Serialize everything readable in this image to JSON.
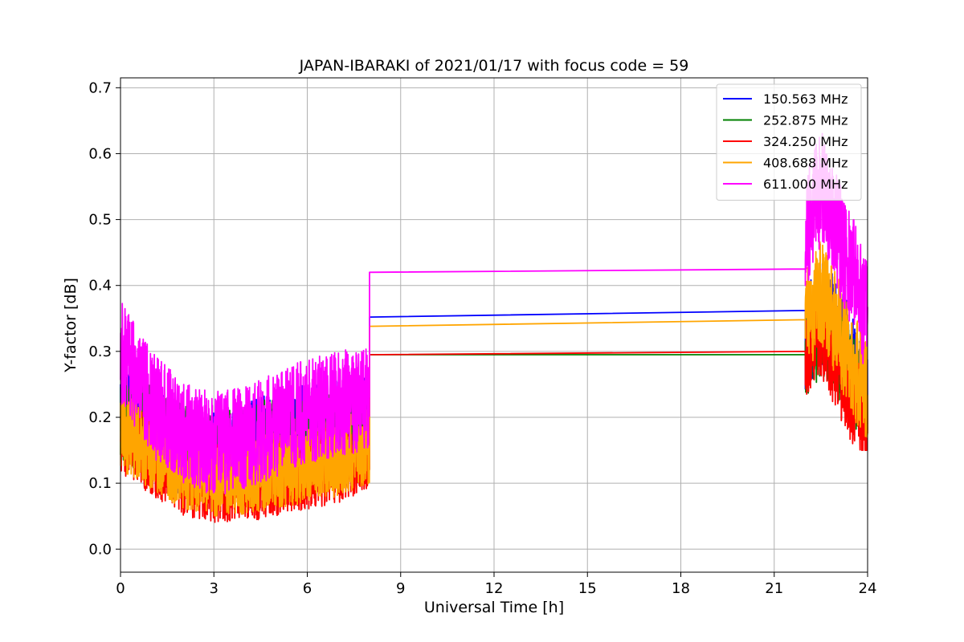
{
  "chart_data": {
    "type": "line",
    "title": "JAPAN-IBARAKI of 2021/01/17 with focus code = 59",
    "xlabel": "Universal Time [h]",
    "ylabel": "Y-factor [dB]",
    "xlim": [
      0,
      24
    ],
    "ylim": [
      -0.035,
      0.715
    ],
    "xticks": [
      0,
      3,
      6,
      9,
      12,
      15,
      18,
      21,
      24
    ],
    "yticks": [
      0.0,
      0.1,
      0.2,
      0.3,
      0.4,
      0.5,
      0.6,
      0.7
    ],
    "grid": true,
    "legend_position": "top-right",
    "series": [
      {
        "name": "150.563 MHz",
        "color": "#0000ff",
        "segments": [
          {
            "x_start": 0.0,
            "x_end": 8.0,
            "base": [
              [
                0,
                0.22
              ],
              [
                1,
                0.18
              ],
              [
                2,
                0.15
              ],
              [
                3,
                0.14
              ],
              [
                4,
                0.15
              ],
              [
                5,
                0.17
              ],
              [
                6,
                0.18
              ],
              [
                7,
                0.19
              ],
              [
                8,
                0.2
              ]
            ],
            "noise": 0.07,
            "min_value": 0.0,
            "max_value": 0.36
          },
          {
            "x_start": 8.0,
            "x_end": 22.0,
            "points": [
              [
                8.0,
                0.2
              ],
              [
                8.0,
                0.352
              ],
              [
                22.0,
                0.362
              ],
              [
                22.0,
                0.3
              ]
            ]
          },
          {
            "x_start": 22.0,
            "x_end": 24.0,
            "base": [
              [
                22,
                0.32
              ],
              [
                22.5,
                0.36
              ],
              [
                23,
                0.33
              ],
              [
                23.5,
                0.28
              ],
              [
                24,
                0.22
              ]
            ],
            "noise": 0.08,
            "min_value": 0.19,
            "max_value": 0.5
          }
        ]
      },
      {
        "name": "252.875 MHz",
        "color": "#008000",
        "segments": [
          {
            "x_start": 0.0,
            "x_end": 8.0,
            "base": [
              [
                0,
                0.2
              ],
              [
                1,
                0.18
              ],
              [
                2,
                0.15
              ],
              [
                3,
                0.14
              ],
              [
                4,
                0.15
              ],
              [
                5,
                0.16
              ],
              [
                6,
                0.17
              ],
              [
                7,
                0.18
              ],
              [
                8,
                0.19
              ]
            ],
            "noise": 0.07,
            "min_value": 0.03,
            "max_value": 0.34
          },
          {
            "x_start": 8.0,
            "x_end": 22.0,
            "points": [
              [
                8.0,
                0.19
              ],
              [
                8.0,
                0.295
              ],
              [
                22.0,
                0.295
              ],
              [
                22.0,
                0.28
              ]
            ]
          },
          {
            "x_start": 22.0,
            "x_end": 24.0,
            "base": [
              [
                22,
                0.3
              ],
              [
                22.5,
                0.33
              ],
              [
                23,
                0.3
              ],
              [
                23.5,
                0.26
              ],
              [
                24,
                0.22
              ]
            ],
            "noise": 0.07,
            "min_value": 0.18,
            "max_value": 0.44
          }
        ]
      },
      {
        "name": "324.250 MHz",
        "color": "#ff0000",
        "segments": [
          {
            "x_start": 0.0,
            "x_end": 8.0,
            "base": [
              [
                0,
                0.17
              ],
              [
                1,
                0.14
              ],
              [
                2,
                0.11
              ],
              [
                3,
                0.1
              ],
              [
                4,
                0.1
              ],
              [
                5,
                0.11
              ],
              [
                6,
                0.12
              ],
              [
                7,
                0.13
              ],
              [
                8,
                0.15
              ]
            ],
            "noise": 0.06,
            "min_value": 0.0,
            "max_value": 0.28
          },
          {
            "x_start": 8.0,
            "x_end": 22.0,
            "points": [
              [
                8.0,
                0.15
              ],
              [
                8.0,
                0.295
              ],
              [
                22.0,
                0.3
              ],
              [
                22.0,
                0.28
              ]
            ]
          },
          {
            "x_start": 22.0,
            "x_end": 24.0,
            "base": [
              [
                22,
                0.3
              ],
              [
                22.5,
                0.33
              ],
              [
                23,
                0.28
              ],
              [
                23.5,
                0.23
              ],
              [
                24,
                0.2
              ]
            ],
            "noise": 0.07,
            "min_value": 0.15,
            "max_value": 0.44
          }
        ]
      },
      {
        "name": "408.688 MHz",
        "color": "#ffa500",
        "segments": [
          {
            "x_start": 0.0,
            "x_end": 8.0,
            "base": [
              [
                0,
                0.18
              ],
              [
                1,
                0.15
              ],
              [
                2,
                0.12
              ],
              [
                3,
                0.11
              ],
              [
                4,
                0.11
              ],
              [
                5,
                0.12
              ],
              [
                6,
                0.13
              ],
              [
                7,
                0.14
              ],
              [
                8,
                0.16
              ]
            ],
            "noise": 0.06,
            "min_value": 0.01,
            "max_value": 0.27
          },
          {
            "x_start": 8.0,
            "x_end": 22.0,
            "points": [
              [
                8.0,
                0.16
              ],
              [
                8.0,
                0.338
              ],
              [
                22.0,
                0.348
              ],
              [
                22.0,
                0.32
              ]
            ]
          },
          {
            "x_start": 22.0,
            "x_end": 24.0,
            "base": [
              [
                22,
                0.34
              ],
              [
                22.5,
                0.39
              ],
              [
                23,
                0.34
              ],
              [
                23.5,
                0.28
              ],
              [
                24,
                0.24
              ]
            ],
            "noise": 0.08,
            "min_value": 0.17,
            "max_value": 0.5
          }
        ]
      },
      {
        "name": "611.000 MHz",
        "color": "#ff00ff",
        "segments": [
          {
            "x_start": 0.0,
            "x_end": 8.0,
            "base": [
              [
                0,
                0.3
              ],
              [
                1,
                0.22
              ],
              [
                2,
                0.18
              ],
              [
                3,
                0.16
              ],
              [
                4,
                0.17
              ],
              [
                5,
                0.19
              ],
              [
                6,
                0.21
              ],
              [
                7,
                0.22
              ],
              [
                8,
                0.23
              ]
            ],
            "noise": 0.08,
            "min_value": 0.0,
            "max_value": 0.42
          },
          {
            "x_start": 8.0,
            "x_end": 22.0,
            "points": [
              [
                8.0,
                0.23
              ],
              [
                8.0,
                0.42
              ],
              [
                22.0,
                0.425
              ],
              [
                22.0,
                0.4
              ]
            ]
          },
          {
            "x_start": 22.0,
            "x_end": 24.0,
            "base": [
              [
                22,
                0.48
              ],
              [
                22.5,
                0.55
              ],
              [
                23,
                0.48
              ],
              [
                23.5,
                0.42
              ],
              [
                24,
                0.35
              ]
            ],
            "noise": 0.09,
            "min_value": 0.25,
            "max_value": 0.68
          }
        ]
      }
    ]
  }
}
